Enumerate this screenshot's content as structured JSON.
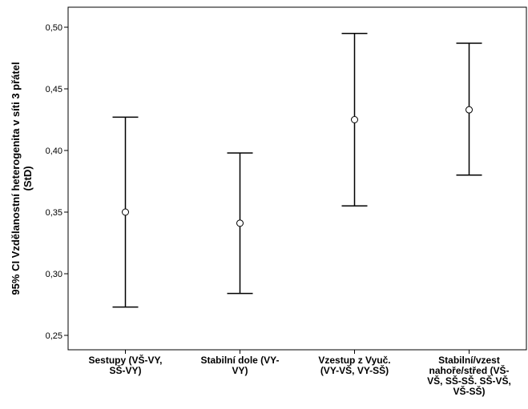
{
  "chart_data": {
    "type": "errorbar",
    "ylabel_lines": [
      "95% CI Vzdělanostní heterogenita v síti 3 přátel",
      "(StD)"
    ],
    "ylim": [
      0.24,
      0.515
    ],
    "yticks": [
      0.25,
      0.3,
      0.35,
      0.4,
      0.45,
      0.5
    ],
    "ytick_labels": [
      "0,25",
      "0,30",
      "0,35",
      "0,40",
      "0,45",
      "0,50"
    ],
    "categories": [
      {
        "label_lines": [
          "Sestupy (VŠ-VY,",
          "SŠ-VY)"
        ],
        "mean": 0.35,
        "lower": 0.273,
        "upper": 0.427
      },
      {
        "label_lines": [
          "Stabilní dole (VY-",
          "VY)"
        ],
        "mean": 0.341,
        "lower": 0.284,
        "upper": 0.398
      },
      {
        "label_lines": [
          "Vzestup z Vyuč.",
          "(VY-VŠ, VY-SŠ)"
        ],
        "mean": 0.425,
        "lower": 0.355,
        "upper": 0.495
      },
      {
        "label_lines": [
          "Stabilní/vzest",
          "nahoře/střed (VŠ-",
          "VŠ, SŠ-SŠ. SŠ-VŠ,",
          "VŠ-SŠ)"
        ],
        "mean": 0.433,
        "lower": 0.38,
        "upper": 0.487
      }
    ],
    "grid": false,
    "legend": "none"
  }
}
